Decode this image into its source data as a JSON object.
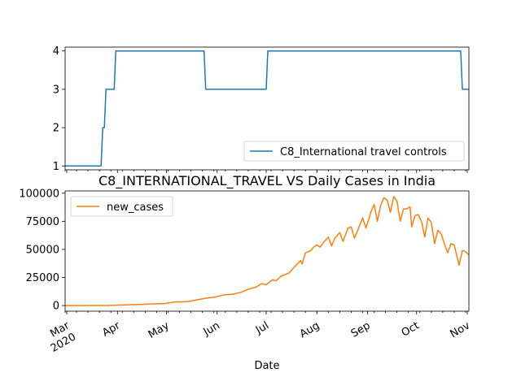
{
  "chart_data": [
    {
      "type": "line",
      "title": "",
      "xlabel": "",
      "ylabel": "",
      "ylim": [
        0.9,
        4.1
      ],
      "yticks": [
        1,
        2,
        3,
        4
      ],
      "xlim": [
        "2020-02-29",
        "2020-11-02"
      ],
      "legend_position": "lower-right",
      "grid": false,
      "series": [
        {
          "name": "C8_International travel controls",
          "color": "#1f77b4",
          "step_points": [
            [
              "2020-02-29",
              1
            ],
            [
              "2020-03-22",
              1
            ],
            [
              "2020-03-23",
              2
            ],
            [
              "2020-03-24",
              2
            ],
            [
              "2020-03-25",
              3
            ],
            [
              "2020-03-30",
              3
            ],
            [
              "2020-03-31",
              4
            ],
            [
              "2020-05-24",
              4
            ],
            [
              "2020-05-25",
              3
            ],
            [
              "2020-07-01",
              3
            ],
            [
              "2020-07-02",
              4
            ],
            [
              "2020-10-28",
              4
            ],
            [
              "2020-10-29",
              3
            ],
            [
              "2020-11-02",
              3
            ]
          ]
        }
      ]
    },
    {
      "type": "line",
      "title": "C8_INTERNATIONAL_TRAVEL VS Daily Cases in India",
      "xlabel": "Date",
      "ylabel": "",
      "ylim": [
        -5000,
        102000
      ],
      "yticks": [
        0,
        25000,
        50000,
        75000,
        100000
      ],
      "ytick_labels": [
        "0",
        "25000",
        "50000",
        "75000",
        "100000"
      ],
      "xlim": [
        "2020-02-29",
        "2020-11-02"
      ],
      "legend_position": "upper-left",
      "grid": false,
      "x_major_ticks": [
        {
          "date": "2020-03-01",
          "label": "Mar",
          "label2": "2020"
        },
        {
          "date": "2020-04-01",
          "label": "Apr"
        },
        {
          "date": "2020-05-01",
          "label": "May"
        },
        {
          "date": "2020-06-01",
          "label": "Jun"
        },
        {
          "date": "2020-07-01",
          "label": "Jul"
        },
        {
          "date": "2020-08-01",
          "label": "Aug"
        },
        {
          "date": "2020-09-01",
          "label": "Sep"
        },
        {
          "date": "2020-10-01",
          "label": "Oct"
        },
        {
          "date": "2020-11-01",
          "label": "Nov"
        }
      ],
      "series": [
        {
          "name": "new_cases",
          "color": "#ff7f0e",
          "points": [
            [
              "2020-02-29",
              0
            ],
            [
              "2020-03-15",
              20
            ],
            [
              "2020-03-25",
              90
            ],
            [
              "2020-03-31",
              300
            ],
            [
              "2020-04-05",
              500
            ],
            [
              "2020-04-10",
              800
            ],
            [
              "2020-04-15",
              1000
            ],
            [
              "2020-04-20",
              1300
            ],
            [
              "2020-04-25",
              1600
            ],
            [
              "2020-04-30",
              1800
            ],
            [
              "2020-05-05",
              3000
            ],
            [
              "2020-05-08",
              3400
            ],
            [
              "2020-05-10",
              3200
            ],
            [
              "2020-05-15",
              3800
            ],
            [
              "2020-05-20",
              5200
            ],
            [
              "2020-05-25",
              6500
            ],
            [
              "2020-05-31",
              7600
            ],
            [
              "2020-06-05",
              9500
            ],
            [
              "2020-06-10",
              10000
            ],
            [
              "2020-06-15",
              11500
            ],
            [
              "2020-06-20",
              14500
            ],
            [
              "2020-06-25",
              16500
            ],
            [
              "2020-06-28",
              19500
            ],
            [
              "2020-07-01",
              18500
            ],
            [
              "2020-07-05",
              23000
            ],
            [
              "2020-07-07",
              22000
            ],
            [
              "2020-07-10",
              26000
            ],
            [
              "2020-07-15",
              29000
            ],
            [
              "2020-07-18",
              34000
            ],
            [
              "2020-07-20",
              37000
            ],
            [
              "2020-07-22",
              40000
            ],
            [
              "2020-07-23",
              37000
            ],
            [
              "2020-07-25",
              47000
            ],
            [
              "2020-07-28",
              48500
            ],
            [
              "2020-07-30",
              52000
            ],
            [
              "2020-08-01",
              54000
            ],
            [
              "2020-08-03",
              52000
            ],
            [
              "2020-08-05",
              56000
            ],
            [
              "2020-08-08",
              61000
            ],
            [
              "2020-08-10",
              53000
            ],
            [
              "2020-08-12",
              60000
            ],
            [
              "2020-08-15",
              65000
            ],
            [
              "2020-08-17",
              57000
            ],
            [
              "2020-08-20",
              69000
            ],
            [
              "2020-08-22",
              70000
            ],
            [
              "2020-08-24",
              60000
            ],
            [
              "2020-08-26",
              67000
            ],
            [
              "2020-08-29",
              78000
            ],
            [
              "2020-08-31",
              69000
            ],
            [
              "2020-09-02",
              78000
            ],
            [
              "2020-09-03",
              83000
            ],
            [
              "2020-09-05",
              90000
            ],
            [
              "2020-09-07",
              75000
            ],
            [
              "2020-09-09",
              89000
            ],
            [
              "2020-09-11",
              96000
            ],
            [
              "2020-09-13",
              94000
            ],
            [
              "2020-09-15",
              83000
            ],
            [
              "2020-09-17",
              97000
            ],
            [
              "2020-09-19",
              93000
            ],
            [
              "2020-09-21",
              75000
            ],
            [
              "2020-09-23",
              86000
            ],
            [
              "2020-09-25",
              86000
            ],
            [
              "2020-09-27",
              88000
            ],
            [
              "2020-09-28",
              70000
            ],
            [
              "2020-09-30",
              80000
            ],
            [
              "2020-10-02",
              81000
            ],
            [
              "2020-10-04",
              75000
            ],
            [
              "2020-10-06",
              61000
            ],
            [
              "2020-10-08",
              78000
            ],
            [
              "2020-10-10",
              74000
            ],
            [
              "2020-10-12",
              55000
            ],
            [
              "2020-10-14",
              67000
            ],
            [
              "2020-10-16",
              64000
            ],
            [
              "2020-10-18",
              55000
            ],
            [
              "2020-10-20",
              47000
            ],
            [
              "2020-10-22",
              55000
            ],
            [
              "2020-10-24",
              54000
            ],
            [
              "2020-10-27",
              36000
            ],
            [
              "2020-10-29",
              49000
            ],
            [
              "2020-10-31",
              48000
            ],
            [
              "2020-11-02",
              45000
            ]
          ]
        }
      ]
    }
  ]
}
